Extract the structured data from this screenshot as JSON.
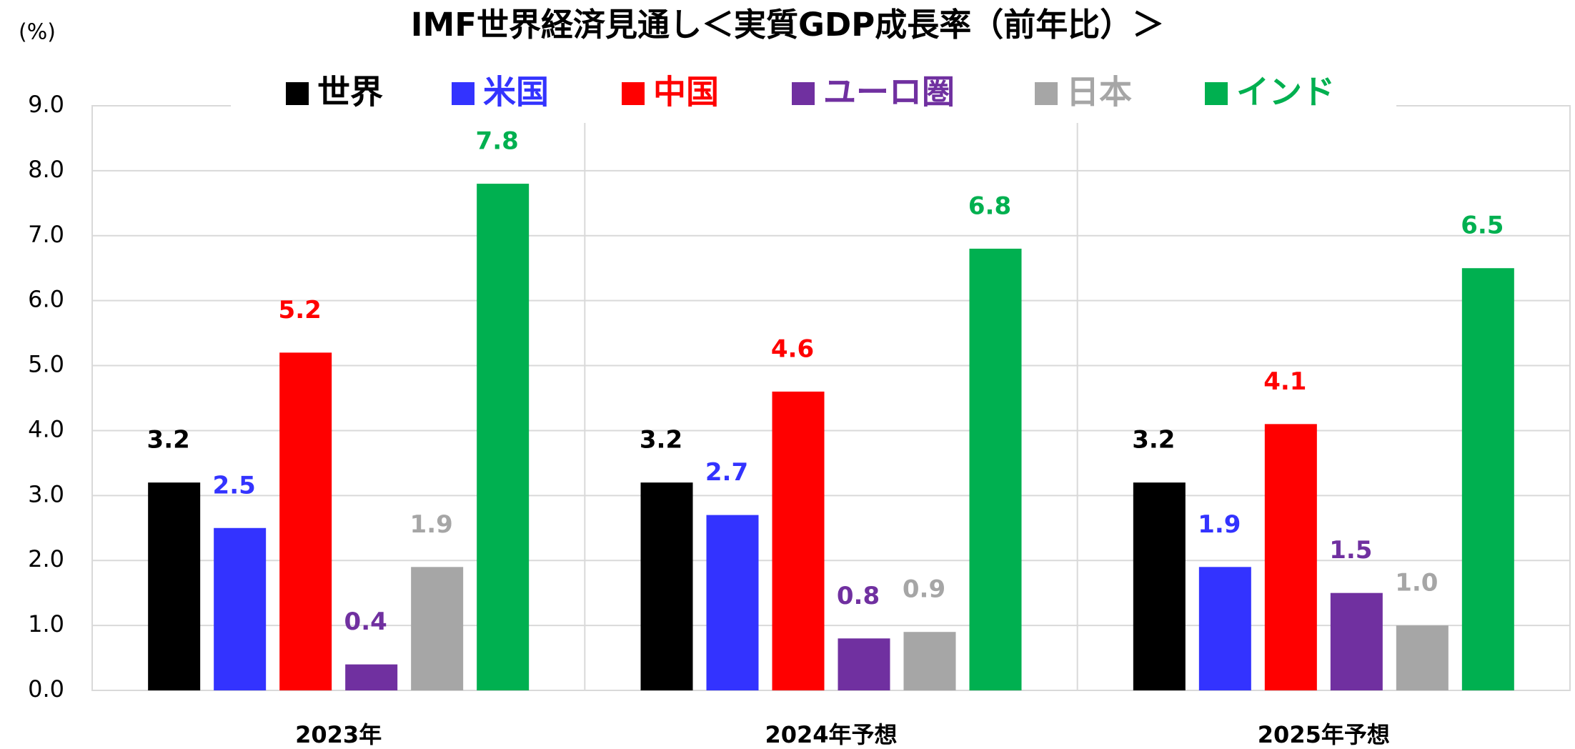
{
  "chart_data": {
    "type": "bar",
    "title": "IMF世界経済見通し＜実質GDP成長率（前年比）＞",
    "y_label": "(%)",
    "categories": [
      "2023年",
      "2024年予想",
      "2025年予想"
    ],
    "series": [
      {
        "name": "世界",
        "color": "#000000",
        "values": [
          3.2,
          3.2,
          3.2
        ],
        "value_labels": [
          "3.2",
          "3.2",
          "3.2"
        ]
      },
      {
        "name": "米国",
        "color": "#3333ff",
        "values": [
          2.5,
          2.7,
          1.9
        ],
        "value_labels": [
          "2.5",
          "2.7",
          "1.9"
        ]
      },
      {
        "name": "中国",
        "color": "#ff0000",
        "values": [
          5.2,
          4.6,
          4.1
        ],
        "value_labels": [
          "5.2",
          "4.6",
          "4.1"
        ]
      },
      {
        "name": "ユーロ圏",
        "color": "#7030a0",
        "values": [
          0.4,
          0.8,
          1.5
        ],
        "value_labels": [
          "0.4",
          "0.8",
          "1.5"
        ]
      },
      {
        "name": "日本",
        "color": "#a6a6a6",
        "values": [
          1.9,
          0.9,
          1.0
        ],
        "value_labels": [
          "1.9",
          "0.9",
          "1.0"
        ]
      },
      {
        "name": "インド",
        "color": "#00b050",
        "values": [
          7.8,
          6.8,
          6.5
        ],
        "value_labels": [
          "7.8",
          "6.8",
          "6.5"
        ]
      }
    ],
    "ylim": [
      0,
      9
    ],
    "yticks": [
      {
        "value": 0,
        "label": "0.0"
      },
      {
        "value": 1,
        "label": "1.0"
      },
      {
        "value": 2,
        "label": "2.0"
      },
      {
        "value": 3,
        "label": "3.0"
      },
      {
        "value": 4,
        "label": "4.0"
      },
      {
        "value": 5,
        "label": "5.0"
      },
      {
        "value": 6,
        "label": "6.0"
      },
      {
        "value": 7,
        "label": "7.0"
      },
      {
        "value": 8,
        "label": "8.0"
      },
      {
        "value": 9,
        "label": "9.0"
      }
    ],
    "grid": true,
    "legend": "top"
  }
}
